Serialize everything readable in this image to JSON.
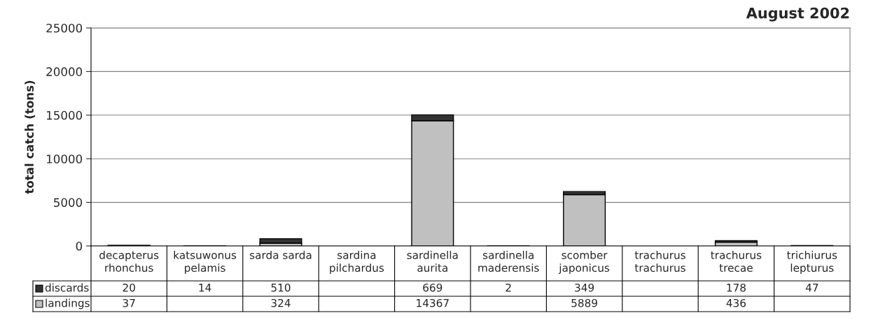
{
  "chart_data": {
    "type": "bar",
    "title": "August 2002",
    "ylabel": "total catch (tons)",
    "categories": [
      "decapterus rhonchus",
      "katsuwonus pelamis",
      "sarda sarda",
      "sardina pilchardus",
      "sardinella aurita",
      "sardinella maderensis",
      "scomber japonicus",
      "trachurus trachurus",
      "trachurus trecae",
      "trichiurus lepturus"
    ],
    "stacked": true,
    "series": [
      {
        "name": "landings",
        "color": "#c0c0c0",
        "values": [
          37,
          null,
          324,
          null,
          14367,
          null,
          5889,
          null,
          436,
          null
        ]
      },
      {
        "name": "discards",
        "color": "#333333",
        "values": [
          20,
          14,
          510,
          null,
          669,
          2,
          349,
          null,
          178,
          47
        ]
      }
    ],
    "ylim": [
      0,
      25000
    ],
    "yticks": [
      0,
      5000,
      10000,
      15000,
      20000,
      25000
    ],
    "grid": "y",
    "legend": "bottom",
    "data_labels": true
  }
}
